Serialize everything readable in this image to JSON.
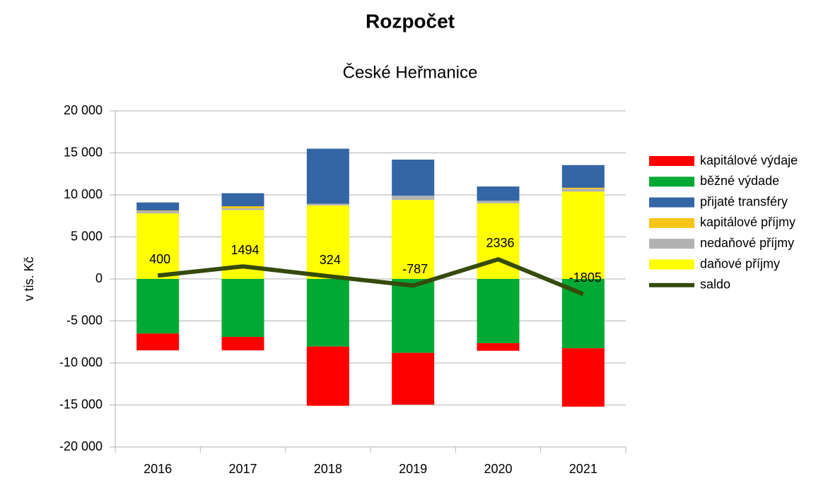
{
  "chart_data": {
    "type": "bar",
    "stacked": true,
    "title": "Rozpočet",
    "subtitle": "České Heřmanice",
    "ylabel": "v tis. Kč",
    "categories": [
      "2016",
      "2017",
      "2018",
      "2019",
      "2020",
      "2021"
    ],
    "series": [
      {
        "name": "kapitálové výdaje",
        "color": "#ff0000",
        "values": [
          -2000,
          -1600,
          -7050,
          -6150,
          -900,
          -6950
        ]
      },
      {
        "name": "běžné výdade",
        "color": "#00a933",
        "values": [
          -6500,
          -6900,
          -8050,
          -8800,
          -7650,
          -8250
        ]
      },
      {
        "name": "přijaté transféry",
        "color": "#3465a4",
        "values": [
          950,
          1550,
          6550,
          4300,
          1700,
          2700
        ]
      },
      {
        "name": "kapitálové příjmy",
        "color": "#f5c518",
        "values": [
          50,
          250,
          0,
          0,
          0,
          150
        ]
      },
      {
        "name": "nedaňové příjmy",
        "color": "#b2b2b2",
        "values": [
          300,
          200,
          200,
          500,
          300,
          300
        ]
      },
      {
        "name": "daňové příjmy",
        "color": "#ffff00",
        "values": [
          7800,
          8200,
          8750,
          9400,
          9000,
          10400
        ]
      },
      {
        "name": "saldo",
        "type": "line",
        "color": "#354a0c",
        "values": [
          400,
          1494,
          324,
          -787,
          2336,
          -1805
        ]
      }
    ],
    "ylim": [
      -20000,
      20000
    ],
    "yticks": [
      {
        "value": -20000,
        "label": "-20 000"
      },
      {
        "value": -15000,
        "label": "-15 000"
      },
      {
        "value": -10000,
        "label": "-10 000"
      },
      {
        "value": -5000,
        "label": "-5 000"
      },
      0,
      {
        "value": 5000,
        "label": "5 000"
      },
      {
        "value": 10000,
        "label": "10 000"
      },
      {
        "value": 15000,
        "label": "15 000"
      },
      {
        "value": 20000,
        "label": "20 000"
      }
    ],
    "grid": true,
    "legend": "right"
  }
}
